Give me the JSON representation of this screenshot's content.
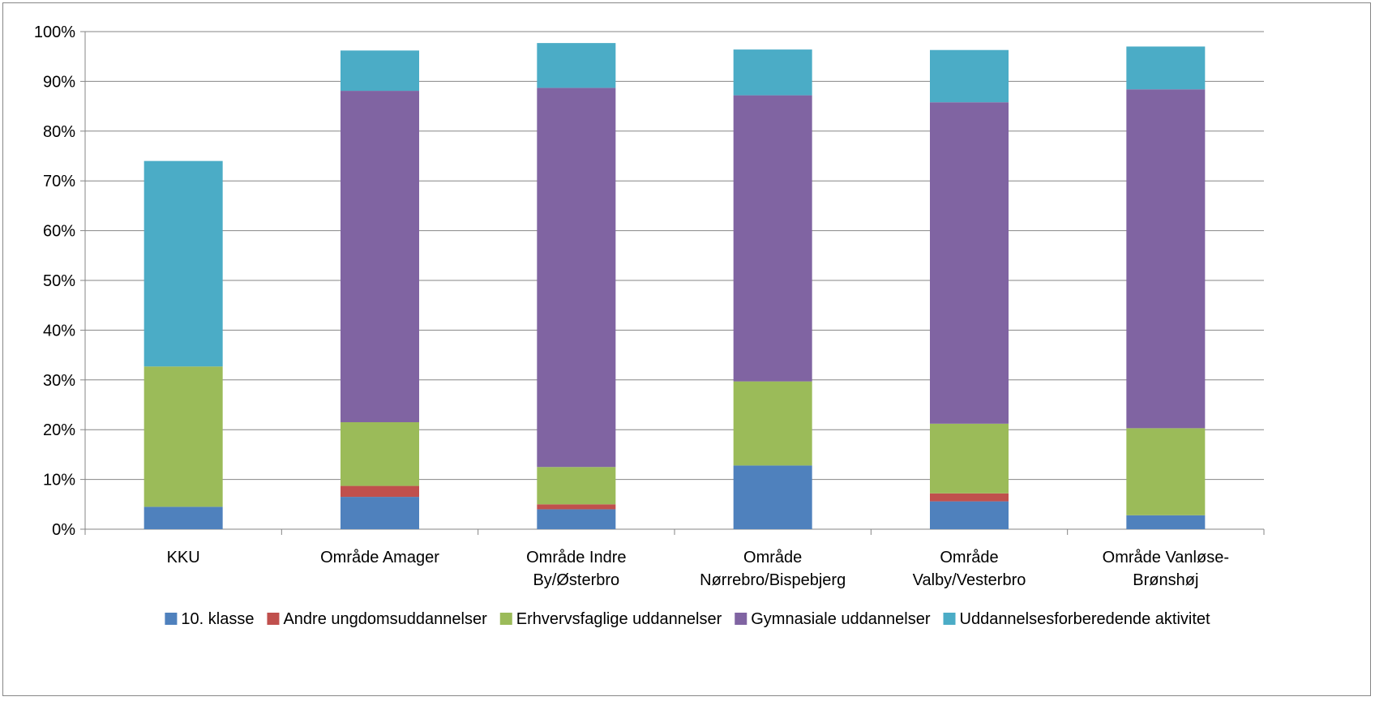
{
  "chart_data": {
    "type": "bar",
    "stacked": true,
    "categories": [
      [
        "KKU"
      ],
      [
        "Område Amager"
      ],
      [
        "Område Indre",
        "By/Østerbro"
      ],
      [
        "Område",
        "Nørrebro/Bispebjerg"
      ],
      [
        "Område",
        "Valby/Vesterbro"
      ],
      [
        "Område Vanløse-",
        "Brønshøj"
      ]
    ],
    "series": [
      {
        "name": "10. klasse",
        "color": "#4F81BD",
        "values": [
          4.5,
          6.5,
          4.0,
          12.8,
          5.6,
          2.8
        ]
      },
      {
        "name": "Andre ungdomsuddannelser",
        "color": "#C0504D",
        "values": [
          0.0,
          2.2,
          1.0,
          0.0,
          1.6,
          0.0
        ]
      },
      {
        "name": "Erhvervsfaglige uddannelser",
        "color": "#9BBB59",
        "values": [
          28.2,
          12.8,
          7.5,
          16.9,
          14.0,
          17.5
        ]
      },
      {
        "name": "Gymnasiale uddannelser",
        "color": "#8064A2",
        "values": [
          0.0,
          66.6,
          76.2,
          57.5,
          64.6,
          68.1
        ]
      },
      {
        "name": "Uddannelsesforberedende aktivitet",
        "color": "#4BACC6",
        "values": [
          41.3,
          8.1,
          9.0,
          9.2,
          10.5,
          8.6
        ]
      }
    ],
    "y_ticks": [
      "0%",
      "10%",
      "20%",
      "30%",
      "40%",
      "50%",
      "60%",
      "70%",
      "80%",
      "90%",
      "100%"
    ],
    "ylim": [
      0,
      100
    ],
    "grid": true,
    "legend_position": "bottom"
  }
}
